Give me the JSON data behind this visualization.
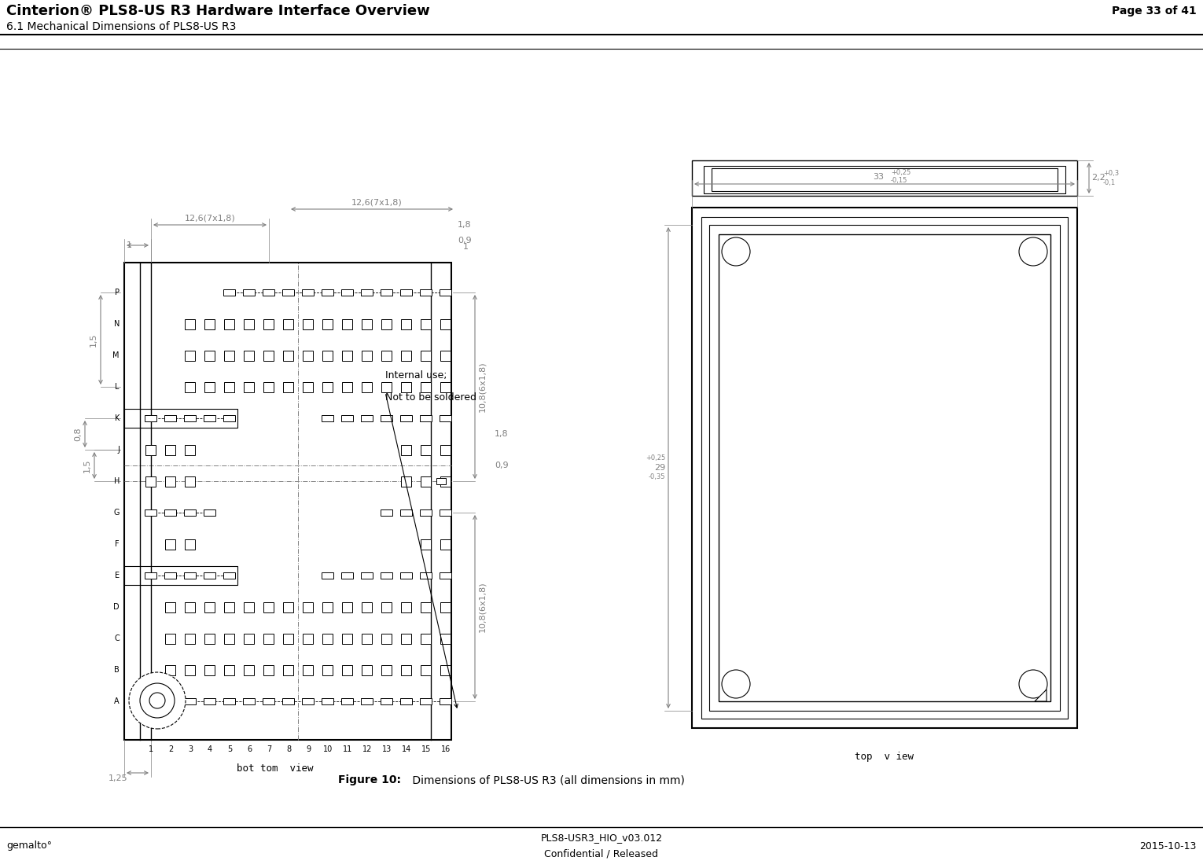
{
  "title": "Cinterion® PLS8-US R3 Hardware Interface Overview",
  "subtitle": "6.1 Mechanical Dimensions of PLS8-US R3",
  "page_info": "Page 33 of 41",
  "footer_left": "gemalto°",
  "footer_center_line1": "PLS8-USR3_HIO_v03.012",
  "footer_center_line2": "Confidential / Released",
  "footer_right": "2015-10-13",
  "caption_bold": "Figure 10: ",
  "caption_normal": " Dimensions of PLS8-US R3 (all dimensions in mm)",
  "internal_use_text1": "Internal use;",
  "internal_use_text2": "Not to be soldered",
  "bottom_view_label": "bot tom view",
  "top_view_label": "top  view",
  "bg_color": "#ffffff",
  "line_color": "#000000",
  "dim_color": "#808080",
  "gray_color": "#999999"
}
